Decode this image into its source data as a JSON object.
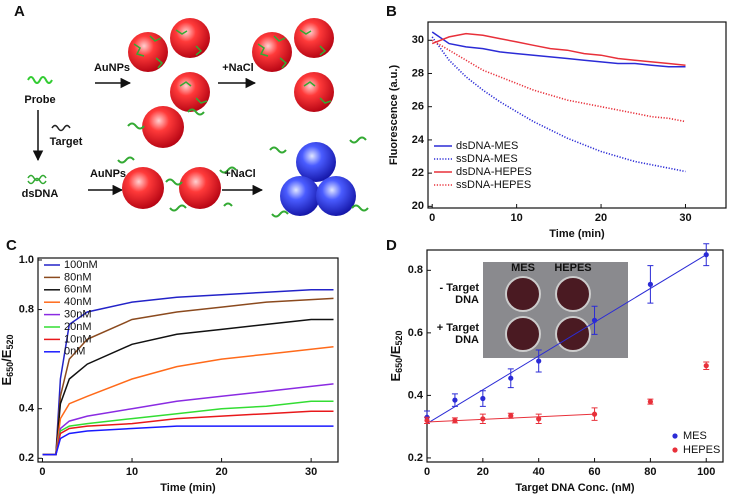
{
  "diagram": {
    "panel": "A",
    "labels": {
      "probe": "Probe",
      "auNPs_top": "AuNPs",
      "nacl_top": "+NaCl",
      "target": "Target",
      "dsDNA": "dsDNA",
      "auNPs_bottom": "AuNPs",
      "nacl_bottom": "+NaCl"
    }
  },
  "chart_data": [
    {
      "type": "line",
      "panel": "B",
      "x_label": "Time (min)",
      "y_label": [
        "Fluorescence (a.u.)"
      ],
      "x": [
        0,
        2,
        4,
        6,
        8,
        10,
        12,
        14,
        16,
        18,
        20,
        22,
        24,
        26,
        28,
        30
      ],
      "series": [
        {
          "name": "dsDNA-MES",
          "color": "#2b2bd6",
          "style": "solid",
          "values": [
            30.5,
            29.8,
            29.6,
            29.5,
            29.3,
            29.2,
            29.1,
            29.0,
            28.9,
            28.8,
            28.7,
            28.6,
            28.6,
            28.5,
            28.4,
            28.4
          ]
        },
        {
          "name": "ssDNA-MES",
          "color": "#2b2bd6",
          "style": "dotted",
          "values": [
            30.2,
            28.8,
            27.8,
            27.0,
            26.3,
            25.7,
            25.1,
            24.6,
            24.1,
            23.7,
            23.3,
            23.0,
            22.7,
            22.5,
            22.3,
            22.1
          ]
        },
        {
          "name": "dsDNA-HEPES",
          "color": "#e8303a",
          "style": "solid",
          "values": [
            29.8,
            30.2,
            30.4,
            30.3,
            30.1,
            29.9,
            29.7,
            29.5,
            29.4,
            29.2,
            29.1,
            28.9,
            28.8,
            28.7,
            28.6,
            28.5
          ]
        },
        {
          "name": "ssDNA-HEPES",
          "color": "#e8303a",
          "style": "dotted",
          "values": [
            30.0,
            29.4,
            28.8,
            28.2,
            27.8,
            27.4,
            27.0,
            26.7,
            26.4,
            26.2,
            26.0,
            25.8,
            25.6,
            25.4,
            25.3,
            25.1
          ]
        }
      ],
      "xlim": [
        -0.5,
        34.8
      ],
      "ylim": [
        19.9,
        31.1
      ],
      "xticks": [
        0,
        10,
        20,
        30
      ],
      "yticks": [
        20,
        22,
        24,
        26,
        28,
        30
      ],
      "legend": "bottom-left"
    },
    {
      "type": "line",
      "panel": "C",
      "x_label": "Time (min)",
      "y_label": [
        "E",
        "650",
        "/E",
        "520"
      ],
      "x": [
        0,
        1.5,
        2,
        3,
        5,
        10,
        15,
        20,
        25,
        30,
        32.5
      ],
      "series": [
        {
          "name": "100nM",
          "color": "#2323c8",
          "style": "solid",
          "values": [
            0.215,
            0.215,
            0.52,
            0.74,
            0.79,
            0.83,
            0.85,
            0.86,
            0.87,
            0.88,
            0.88
          ]
        },
        {
          "name": "80nM",
          "color": "#8b4a1e",
          "style": "solid",
          "values": [
            0.215,
            0.215,
            0.45,
            0.6,
            0.68,
            0.76,
            0.79,
            0.81,
            0.83,
            0.84,
            0.845
          ]
        },
        {
          "name": "60nM",
          "color": "#111111",
          "style": "solid",
          "values": [
            0.215,
            0.215,
            0.42,
            0.52,
            0.58,
            0.66,
            0.7,
            0.72,
            0.74,
            0.76,
            0.76
          ]
        },
        {
          "name": "40nM",
          "color": "#ff6a1a",
          "style": "solid",
          "values": [
            0.215,
            0.215,
            0.36,
            0.42,
            0.45,
            0.52,
            0.57,
            0.6,
            0.62,
            0.64,
            0.65
          ]
        },
        {
          "name": "30nM",
          "color": "#8a2be2",
          "style": "solid",
          "values": [
            0.215,
            0.215,
            0.32,
            0.35,
            0.37,
            0.4,
            0.43,
            0.45,
            0.47,
            0.49,
            0.5
          ]
        },
        {
          "name": "20nM",
          "color": "#33dd33",
          "style": "solid",
          "values": [
            0.215,
            0.215,
            0.31,
            0.33,
            0.34,
            0.36,
            0.38,
            0.4,
            0.41,
            0.43,
            0.43
          ]
        },
        {
          "name": "10nM",
          "color": "#e8181b",
          "style": "solid",
          "values": [
            0.215,
            0.215,
            0.3,
            0.32,
            0.33,
            0.34,
            0.36,
            0.37,
            0.38,
            0.39,
            0.39
          ]
        },
        {
          "name": "0nM",
          "color": "#1a1aff",
          "style": "solid",
          "values": [
            0.215,
            0.215,
            0.28,
            0.3,
            0.31,
            0.32,
            0.33,
            0.33,
            0.33,
            0.33,
            0.33
          ]
        }
      ],
      "xlim": [
        -0.5,
        33
      ],
      "ylim": [
        0.185,
        1.008
      ],
      "xticks": [
        0,
        10,
        20,
        30
      ],
      "yticks": [
        0.2,
        0.4,
        0.8,
        {
          "value": 1,
          "label": "1.0"
        }
      ],
      "legend": "top-left"
    },
    {
      "type": "scatter",
      "panel": "D",
      "x_label": "Target DNA Conc. (nM)",
      "y_label": [
        "E",
        "650",
        "/E",
        "520"
      ],
      "series": [
        {
          "name": "MES",
          "color": "#2b2bd6",
          "x": [
            0,
            10,
            20,
            30,
            40,
            60,
            80,
            100
          ],
          "values": [
            0.33,
            0.385,
            0.39,
            0.455,
            0.51,
            0.64,
            0.755,
            0.85
          ],
          "errors": [
            0.02,
            0.02,
            0.025,
            0.03,
            0.035,
            0.045,
            0.06,
            0.035
          ]
        },
        {
          "name": "HEPES",
          "color": "#e8303a",
          "x": [
            0,
            10,
            20,
            30,
            40,
            60,
            80,
            100
          ],
          "values": [
            0.32,
            0.32,
            0.325,
            0.335,
            0.325,
            0.34,
            0.38,
            0.495
          ],
          "errors": [
            0.01,
            0.008,
            0.015,
            0.008,
            0.015,
            0.02,
            0.008,
            0.012
          ]
        }
      ],
      "fits": [
        {
          "color": "#2b2bd6",
          "x": [
            0,
            100
          ],
          "values": [
            0.31,
            0.85
          ]
        },
        {
          "color": "#e8303a",
          "x": [
            0,
            60
          ],
          "values": [
            0.315,
            0.34
          ]
        }
      ],
      "inset": {
        "columns": [
          "MES",
          "HEPES"
        ],
        "rows": [
          [
            "- Target",
            "DNA"
          ],
          [
            "+ Target",
            "DNA"
          ]
        ]
      },
      "xlim": [
        0,
        106
      ],
      "ylim": [
        0.187,
        0.865
      ],
      "xticks": [
        0,
        20,
        40,
        60,
        80,
        100
      ],
      "yticks": [
        0.2,
        0.4,
        0.6,
        0.8
      ],
      "legend": "bottom-right"
    }
  ]
}
